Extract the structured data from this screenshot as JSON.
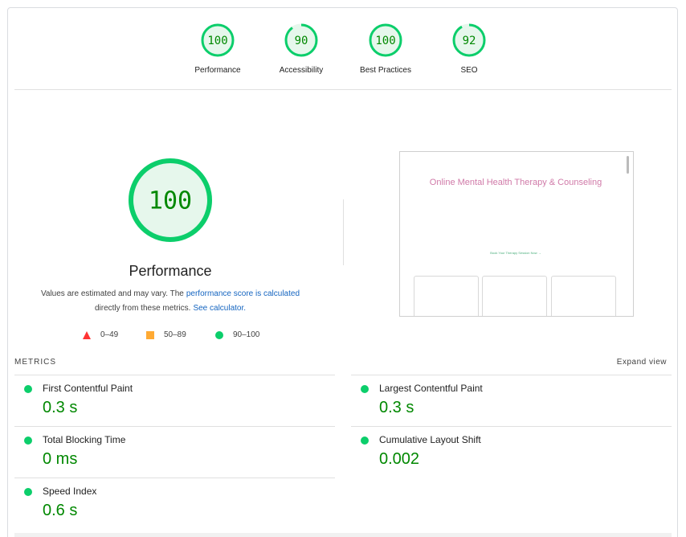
{
  "categories": [
    {
      "label": "Performance",
      "score": 100
    },
    {
      "label": "Accessibility",
      "score": 90
    },
    {
      "label": "Best Practices",
      "score": 100
    },
    {
      "label": "SEO",
      "score": 92
    }
  ],
  "summary": {
    "score": 100,
    "title": "Performance",
    "line1": [
      "Values are estimated and may vary. The",
      "performance score is calculated"
    ],
    "line2": [
      "directly from these metrics.",
      "See calculator."
    ]
  },
  "legend": [
    "0–49",
    "50–89",
    "90–100"
  ],
  "screenshot": {
    "title": "Online Mental Health Therapy & Counseling",
    "cta": "Book Your Therapy Session Now →"
  },
  "metrics_header": "METRICS",
  "expand": "Expand view",
  "metrics": [
    {
      "name": "First Contentful Paint",
      "value": "0.3 s"
    },
    {
      "name": "Largest Contentful Paint",
      "value": "0.3 s"
    },
    {
      "name": "Total Blocking Time",
      "value": "0 ms"
    },
    {
      "name": "Cumulative Layout Shift",
      "value": "0.002"
    },
    {
      "name": "Speed Index",
      "value": "0.6 s"
    }
  ]
}
